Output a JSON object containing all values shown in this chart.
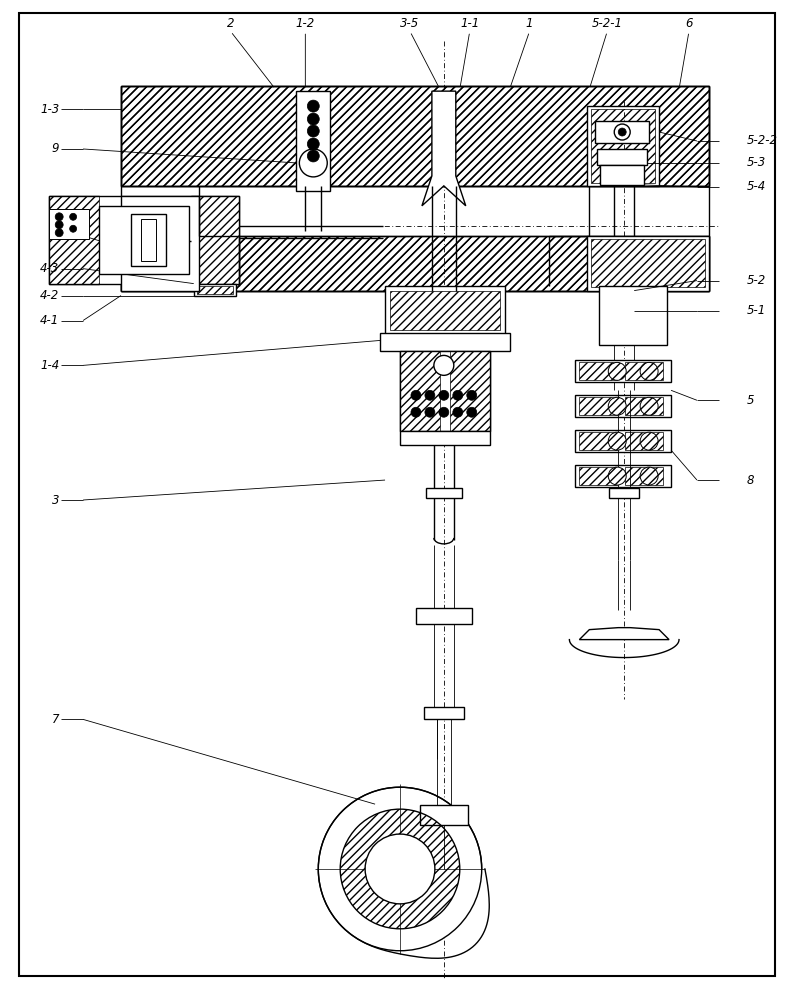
{
  "bg_color": "#ffffff",
  "lw_main": 1.0,
  "lw_thin": 0.6,
  "lw_label": 0.6,
  "fig_width": 7.97,
  "fig_height": 10.0
}
